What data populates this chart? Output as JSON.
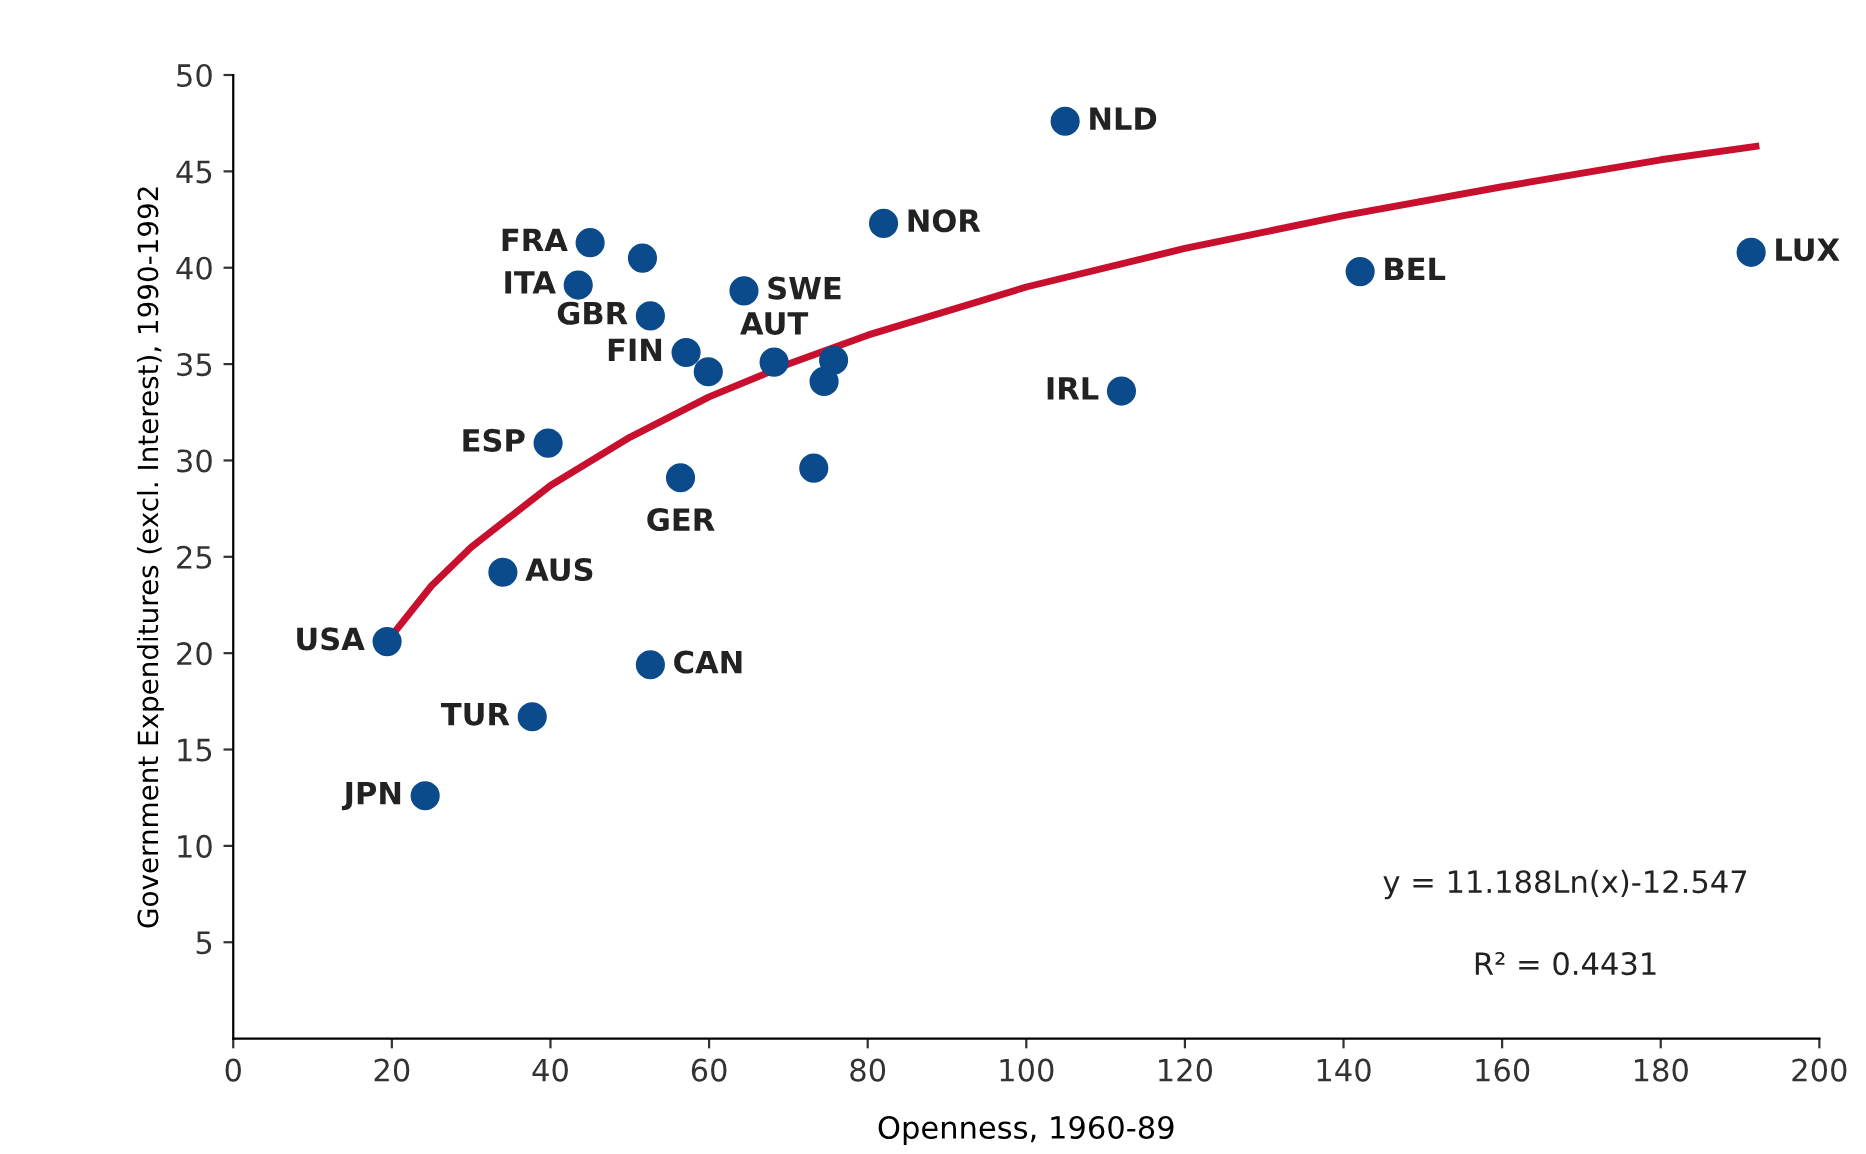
{
  "chart_data": {
    "type": "scatter",
    "xlabel": "Openness, 1960-89",
    "ylabel": "Government Expenditures (excl. Interest), 1990-1992",
    "series": [
      {
        "color": "#0b4a8b",
        "marker": "circle",
        "x": [
          19.4,
          24.2,
          37.7,
          34.0,
          39.7,
          43.5,
          45.0,
          51.6,
          52.6,
          52.6,
          56.4,
          57.1,
          59.9,
          64.4,
          68.2,
          73.2,
          74.5,
          75.7,
          82.0,
          104.9,
          112.0,
          142.1,
          191.4
        ],
        "values": [
          20.6,
          12.6,
          16.7,
          24.2,
          30.9,
          39.1,
          41.3,
          40.5,
          37.5,
          19.4,
          29.1,
          35.6,
          34.6,
          38.8,
          35.1,
          29.6,
          34.1,
          35.2,
          42.3,
          47.6,
          33.6,
          39.8,
          40.8
        ]
      },
      {
        "type": "line",
        "color": "#c8102e",
        "marker": "none",
        "line_style": "solid",
        "x": [
          19,
          25,
          30,
          40,
          50,
          60,
          70,
          80,
          100,
          120,
          140,
          160,
          180,
          192
        ],
        "values": [
          20.4,
          23.5,
          25.5,
          28.7,
          31.2,
          33.3,
          35.0,
          36.5,
          39.0,
          41.0,
          42.7,
          44.2,
          45.6,
          46.3
        ]
      }
    ],
    "annotations": [
      {
        "text": "USA",
        "x": 19.4,
        "y": 20.6
      },
      {
        "text": "JPN",
        "x": 24.2,
        "y": 12.6
      },
      {
        "text": "TUR",
        "x": 37.7,
        "y": 16.7
      },
      {
        "text": "AUS",
        "x": 34.0,
        "y": 24.2
      },
      {
        "text": "ESP",
        "x": 39.7,
        "y": 30.9
      },
      {
        "text": "ITA",
        "x": 43.5,
        "y": 39.1
      },
      {
        "text": "FRA",
        "x": 45.0,
        "y": 41.3
      },
      {
        "text": "GBR",
        "x": 52.6,
        "y": 37.5
      },
      {
        "text": "CAN",
        "x": 52.6,
        "y": 19.4
      },
      {
        "text": "GER",
        "x": 56.4,
        "y": 29.1
      },
      {
        "text": "FIN",
        "x": 57.1,
        "y": 35.6
      },
      {
        "text": "SWE",
        "x": 64.4,
        "y": 38.8
      },
      {
        "text": "AUT",
        "x": 68.2,
        "y": 35.1
      },
      {
        "text": "NOR",
        "x": 82.0,
        "y": 42.3
      },
      {
        "text": "NLD",
        "x": 104.9,
        "y": 47.6
      },
      {
        "text": "IRL",
        "x": 112.0,
        "y": 33.6
      },
      {
        "text": "BEL",
        "x": 142.1,
        "y": 39.8
      },
      {
        "text": "LUX",
        "x": 191.4,
        "y": 40.8
      },
      "y = 11.188Ln(x)-12.547",
      "R² = 0.4431"
    ],
    "xlim": [
      0,
      200
    ],
    "xticks": [
      0,
      20,
      40,
      60,
      80,
      100,
      120,
      140,
      160,
      180,
      200
    ],
    "ylim": [
      0,
      50
    ],
    "yticks": [
      5,
      10,
      15,
      20,
      25,
      30,
      35,
      40,
      45,
      50
    ],
    "grid": false
  }
}
